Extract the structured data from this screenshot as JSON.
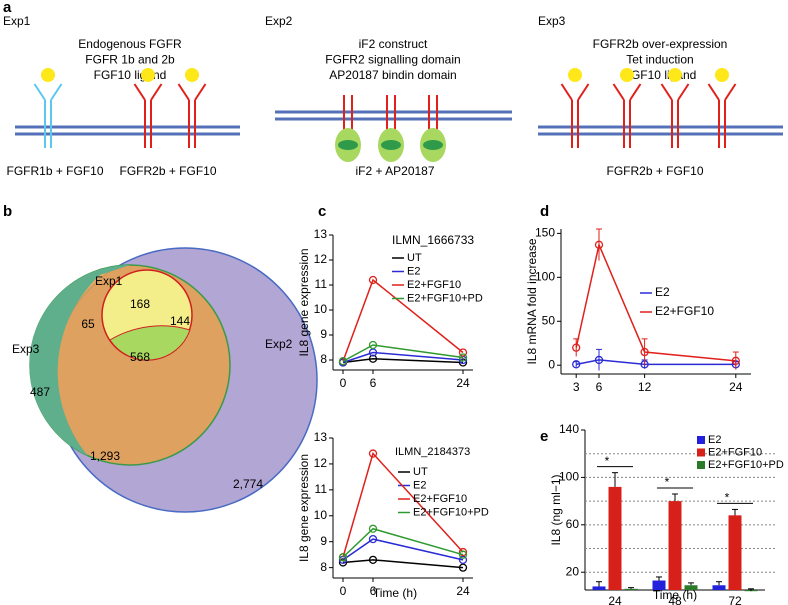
{
  "labels": {
    "a": "a",
    "b": "b",
    "c": "c",
    "d": "d",
    "e": "e"
  },
  "diagram": {
    "experiments": [
      {
        "name": "Exp1",
        "lines": [
          "Endogenous FGFR",
          "FGFR 1b and 2b",
          "FGF10 ligand"
        ],
        "captions": [
          "FGFR1b + FGF10",
          "FGFR2b + FGF10"
        ]
      },
      {
        "name": "Exp2",
        "lines": [
          "iF2 construct",
          "FGFR2 signalling domain",
          "AP20187 bindin domain"
        ],
        "captions": [
          "iF2 + AP20187"
        ]
      },
      {
        "name": "Exp3",
        "lines": [
          "FGFR2b over-expression",
          "Tet induction",
          "FGF10 ligand"
        ],
        "captions": [
          "FGFR2b + FGF10"
        ]
      }
    ]
  },
  "venn": {
    "sets": [
      "Exp1",
      "Exp2",
      "Exp3"
    ],
    "regions": [
      168,
      65,
      144,
      568,
      487,
      "1,293",
      "2,774"
    ]
  },
  "chart_data": [
    {
      "type": "line",
      "title": "ILMN_1666733",
      "ylabel": "IL8 gene expression",
      "x": [
        0,
        6,
        24
      ],
      "xlim": [
        -2,
        26
      ],
      "xticks": [
        0,
        6,
        24
      ],
      "ylim": [
        7.6,
        13
      ],
      "yticks": [
        8,
        9,
        10,
        11,
        12,
        13
      ],
      "series": [
        {
          "name": "UT",
          "color": "#000000",
          "values": [
            7.9,
            8.05,
            7.9
          ]
        },
        {
          "name": "E2",
          "color": "#2b2bd6",
          "values": [
            7.9,
            8.3,
            8.0
          ]
        },
        {
          "name": "E2+FGF10",
          "color": "#e0201b",
          "values": [
            7.95,
            11.2,
            8.3
          ]
        },
        {
          "name": "E2+FGF10+PD",
          "color": "#2e9a2e",
          "values": [
            7.95,
            8.6,
            8.1
          ]
        }
      ]
    },
    {
      "type": "line",
      "title": "ILMN_2184373",
      "ylabel": "IL8 gene expression",
      "xlabel": "Time (h)",
      "x": [
        0,
        6,
        24
      ],
      "xlim": [
        -2,
        26
      ],
      "xticks": [
        0,
        6,
        24
      ],
      "ylim": [
        7.6,
        13
      ],
      "yticks": [
        8,
        9,
        10,
        11,
        12,
        13
      ],
      "series": [
        {
          "name": "UT",
          "color": "#000000",
          "values": [
            8.2,
            8.3,
            8.0
          ]
        },
        {
          "name": "E2",
          "color": "#2b2bd6",
          "values": [
            8.3,
            9.1,
            8.3
          ]
        },
        {
          "name": "E2+FGF10",
          "color": "#e0201b",
          "values": [
            8.4,
            12.4,
            8.6
          ]
        },
        {
          "name": "E2+FGF10+PD",
          "color": "#2e9a2e",
          "values": [
            8.4,
            9.5,
            8.5
          ]
        }
      ]
    },
    {
      "type": "line",
      "ylabel": "IL8 mRNA fold increase",
      "x": [
        3,
        6,
        12,
        24
      ],
      "xlim": [
        1,
        26
      ],
      "xticks": [
        3,
        6,
        12,
        24
      ],
      "ylim": [
        -10,
        155
      ],
      "yticks": [
        0,
        50,
        100,
        150
      ],
      "series": [
        {
          "name": "E2",
          "color": "#2b2bd6",
          "values": [
            1,
            6,
            1,
            1
          ],
          "errors": [
            3,
            12,
            5,
            3
          ]
        },
        {
          "name": "E2+FGF10",
          "color": "#e0201b",
          "values": [
            20,
            137,
            15,
            5
          ],
          "errors": [
            10,
            18,
            15,
            10
          ]
        }
      ]
    },
    {
      "type": "bar",
      "ylabel": "IL8 (ng ml−1)",
      "xlabel": "Time (h)",
      "categories": [
        "24",
        "48",
        "72"
      ],
      "ylim": [
        5,
        140
      ],
      "yticks": [
        20,
        60,
        100,
        140
      ],
      "grid": [
        20,
        40,
        60,
        80,
        100,
        120
      ],
      "significance": [
        "*",
        "*",
        "*"
      ],
      "series": [
        {
          "name": "E2",
          "color": "#2222dd",
          "values": [
            8,
            13,
            9
          ],
          "errors": [
            4,
            3,
            3
          ]
        },
        {
          "name": "E2+FGF10",
          "color": "#d8201a",
          "values": [
            92,
            80,
            68
          ],
          "errors": [
            12,
            6,
            5
          ]
        },
        {
          "name": "E2+FGF10+PD",
          "color": "#2a7a2a",
          "values": [
            6,
            9,
            4
          ],
          "errors": [
            1,
            2,
            2
          ]
        }
      ]
    }
  ]
}
